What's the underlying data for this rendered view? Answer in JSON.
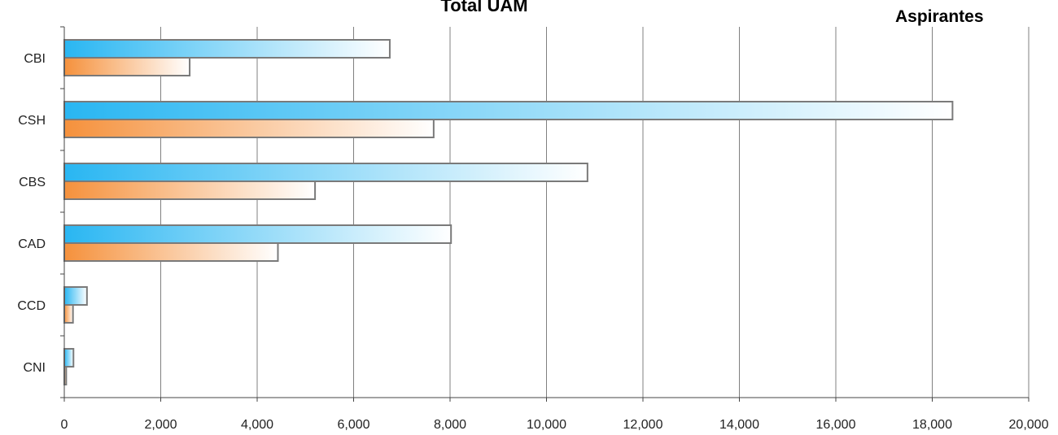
{
  "chart_data": {
    "type": "bar",
    "orientation": "horizontal",
    "title": "Total UAM",
    "series_label": "Aspirantes",
    "categories": [
      "CBI",
      "CSH",
      "CBS",
      "CAD",
      "CCD",
      "CNI"
    ],
    "series": [
      {
        "values": [
          6750,
          18420,
          10850,
          8020,
          470,
          190
        ],
        "color": "#29b6f2"
      },
      {
        "values": [
          2600,
          7660,
          5200,
          4430,
          180,
          40
        ],
        "color": "#f5913c"
      }
    ],
    "xlim": [
      0,
      20000
    ],
    "xticks": [
      "0",
      "2,000",
      "4,000",
      "6,000",
      "8,000",
      "10,000",
      "12,000",
      "14,000",
      "16,000",
      "18,000",
      "20,000"
    ],
    "xtick_values": [
      0,
      2000,
      4000,
      6000,
      8000,
      10000,
      12000,
      14000,
      16000,
      18000,
      20000
    ],
    "grid": "vertical"
  }
}
